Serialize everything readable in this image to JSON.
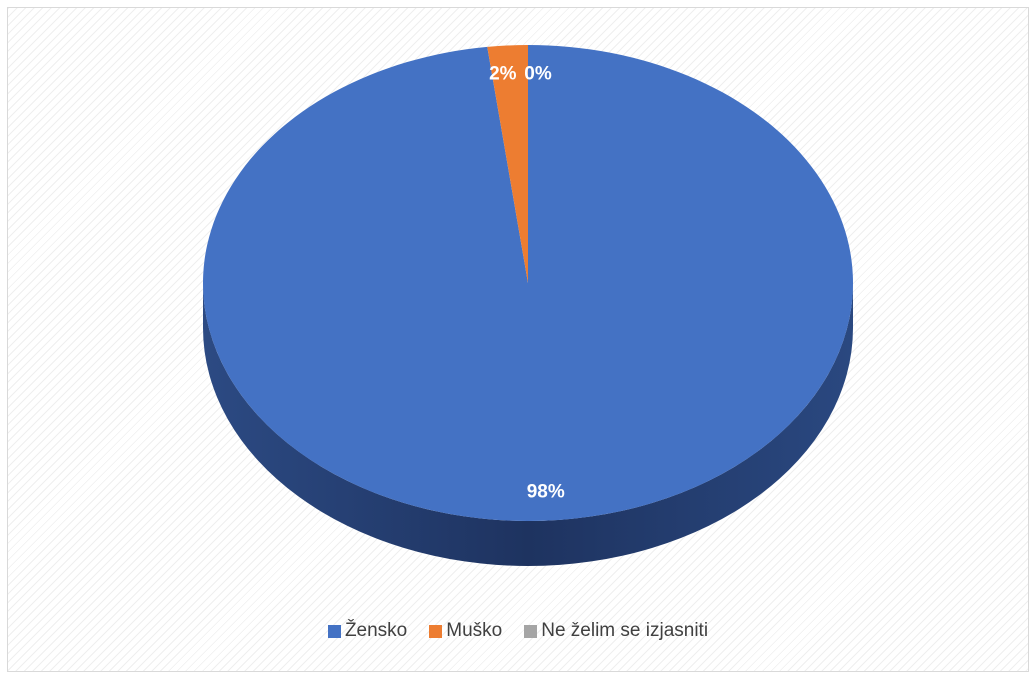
{
  "chart_data": {
    "type": "pie",
    "style": "3d",
    "categories": [
      "Žensko",
      "Muško",
      "Ne želim se izjasniti"
    ],
    "values": [
      98,
      2,
      0
    ],
    "labels": [
      "98%",
      "2%",
      "0%"
    ],
    "colors": [
      "#4472c4",
      "#ed7d31",
      "#a5a5a5"
    ],
    "legend_position": "bottom",
    "title": ""
  }
}
